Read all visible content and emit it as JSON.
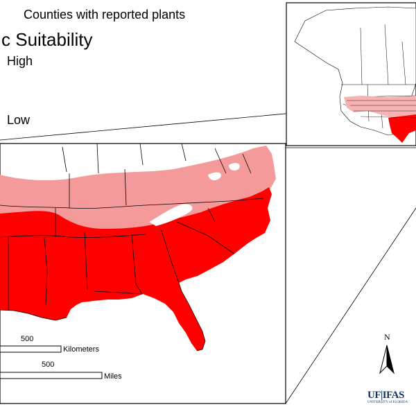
{
  "legend": {
    "counties_label": "Counties with reported plants",
    "title": "c Suitability",
    "high_label": "High",
    "low_label": "Low"
  },
  "scale_bar": {
    "km_value": "500",
    "km_unit": "Kilometers",
    "miles_value": "500",
    "miles_unit": "Miles"
  },
  "north_arrow": {
    "letter": "N",
    "icon": "north-arrow-icon"
  },
  "logo": {
    "main": "UF|IFAS",
    "sub": "UNIVERSITY of FLORIDA"
  },
  "colors": {
    "high_suitability": "#ff0000",
    "medium_suitability": "#f59a9a",
    "low_suitability": "#ffffff",
    "borders": "#000000",
    "logo": "#12315f"
  }
}
